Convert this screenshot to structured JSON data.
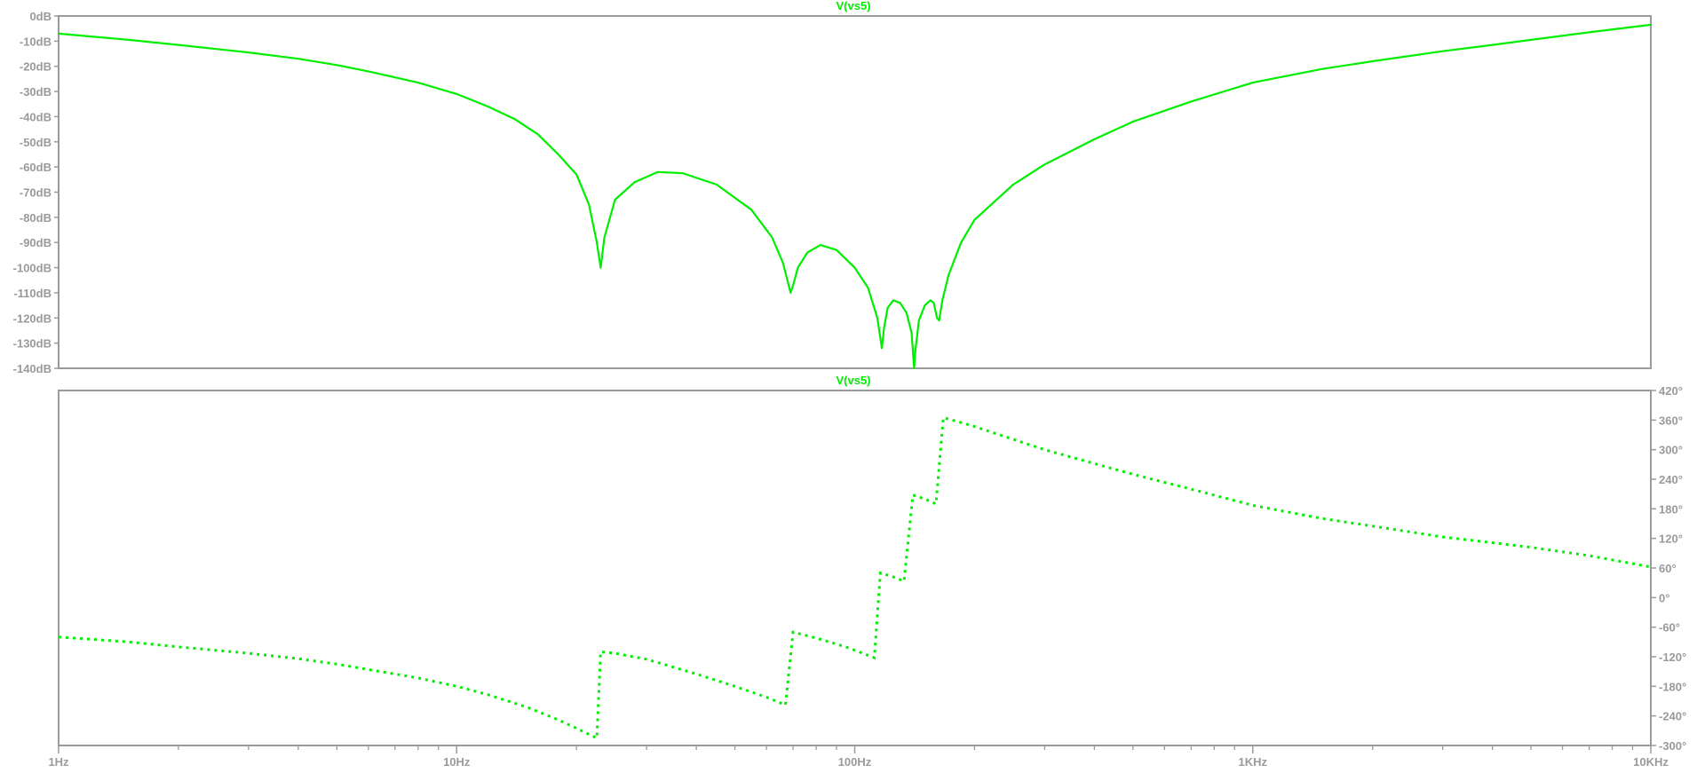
{
  "chart_data": [
    {
      "type": "line",
      "title": "V(vs5)",
      "x_scale": "log",
      "xlim_hz": [
        1,
        10000
      ],
      "x_tick_labels": [
        "1Hz",
        "10Hz",
        "100Hz",
        "1KHz",
        "10KHz"
      ],
      "y_unit": "dB",
      "ylim": [
        -140,
        0
      ],
      "y_tick_labels": [
        "0dB",
        "-10dB",
        "-20dB",
        "-30dB",
        "-40dB",
        "-50dB",
        "-60dB",
        "-70dB",
        "-80dB",
        "-90dB",
        "-100dB",
        "-110dB",
        "-120dB",
        "-130dB",
        "-140dB"
      ],
      "y_axis_side": "left",
      "line_style": "solid",
      "color": "#00ee00",
      "grid": false,
      "points": [
        [
          1,
          -7
        ],
        [
          1.5,
          -9.5
        ],
        [
          2,
          -11.5
        ],
        [
          3,
          -14.5
        ],
        [
          4,
          -17
        ],
        [
          5,
          -19.5
        ],
        [
          6,
          -22
        ],
        [
          8,
          -26.5
        ],
        [
          10,
          -31
        ],
        [
          12,
          -36
        ],
        [
          14,
          -41
        ],
        [
          16,
          -47
        ],
        [
          18,
          -55
        ],
        [
          20,
          -63
        ],
        [
          21.5,
          -75
        ],
        [
          22.5,
          -90
        ],
        [
          23,
          -100
        ],
        [
          23.5,
          -88
        ],
        [
          25,
          -73
        ],
        [
          28,
          -66
        ],
        [
          32,
          -62
        ],
        [
          37,
          -62.5
        ],
        [
          45,
          -67
        ],
        [
          55,
          -77
        ],
        [
          62,
          -88
        ],
        [
          66,
          -98
        ],
        [
          69,
          -110
        ],
        [
          70,
          -107
        ],
        [
          72,
          -100
        ],
        [
          76,
          -94
        ],
        [
          82,
          -91
        ],
        [
          90,
          -93
        ],
        [
          100,
          -100
        ],
        [
          108,
          -108
        ],
        [
          114,
          -120
        ],
        [
          117,
          -132
        ],
        [
          118.5,
          -124
        ],
        [
          121,
          -116
        ],
        [
          125,
          -113
        ],
        [
          130,
          -114
        ],
        [
          135,
          -118
        ],
        [
          139,
          -126
        ],
        [
          141,
          -140
        ],
        [
          142,
          -133
        ],
        [
          145,
          -121
        ],
        [
          150,
          -115
        ],
        [
          155,
          -113
        ],
        [
          158,
          -114
        ],
        [
          161,
          -120
        ],
        [
          163,
          -121
        ],
        [
          166,
          -113
        ],
        [
          172,
          -103
        ],
        [
          185,
          -90
        ],
        [
          200,
          -81
        ],
        [
          250,
          -67
        ],
        [
          300,
          -59
        ],
        [
          400,
          -49
        ],
        [
          500,
          -42
        ],
        [
          700,
          -34
        ],
        [
          1000,
          -26.5
        ],
        [
          1500,
          -21
        ],
        [
          2000,
          -18
        ],
        [
          3000,
          -14
        ],
        [
          4000,
          -11.5
        ],
        [
          5000,
          -9.5
        ],
        [
          7000,
          -6.5
        ],
        [
          10000,
          -3.5
        ]
      ]
    },
    {
      "type": "line",
      "title": "V(vs5)",
      "x_scale": "log",
      "xlim_hz": [
        1,
        10000
      ],
      "x_tick_labels": [
        "1Hz",
        "10Hz",
        "100Hz",
        "1KHz",
        "10KHz"
      ],
      "y_unit": "degrees",
      "ylim": [
        -300,
        420
      ],
      "y_tick_labels": [
        "420°",
        "360°",
        "300°",
        "240°",
        "180°",
        "120°",
        "60°",
        "0°",
        "-60°",
        "-120°",
        "-180°",
        "-240°",
        "-300°"
      ],
      "y_axis_side": "right",
      "line_style": "dotted",
      "color": "#00ee00",
      "grid": false,
      "points": [
        [
          1,
          -80
        ],
        [
          1.5,
          -90
        ],
        [
          2,
          -100
        ],
        [
          3,
          -113
        ],
        [
          4,
          -124
        ],
        [
          5,
          -135
        ],
        [
          6,
          -146
        ],
        [
          8,
          -163
        ],
        [
          10,
          -180
        ],
        [
          12,
          -197
        ],
        [
          15,
          -222
        ],
        [
          18,
          -248
        ],
        [
          20,
          -265
        ],
        [
          22.5,
          -285
        ],
        [
          23,
          -110
        ],
        [
          25,
          -113
        ],
        [
          30,
          -125
        ],
        [
          40,
          -155
        ],
        [
          50,
          -180
        ],
        [
          60,
          -202
        ],
        [
          67,
          -218
        ],
        [
          70,
          -70
        ],
        [
          80,
          -82
        ],
        [
          95,
          -100
        ],
        [
          112,
          -122
        ],
        [
          116,
          50
        ],
        [
          125,
          42
        ],
        [
          133,
          33
        ],
        [
          140,
          208
        ],
        [
          150,
          200
        ],
        [
          160,
          190
        ],
        [
          167,
          365
        ],
        [
          185,
          355
        ],
        [
          200,
          347
        ],
        [
          300,
          300
        ],
        [
          500,
          250
        ],
        [
          700,
          220
        ],
        [
          1000,
          187
        ],
        [
          1500,
          160
        ],
        [
          2000,
          145
        ],
        [
          3000,
          123
        ],
        [
          5000,
          102
        ],
        [
          7000,
          85
        ],
        [
          10000,
          62
        ]
      ]
    }
  ]
}
